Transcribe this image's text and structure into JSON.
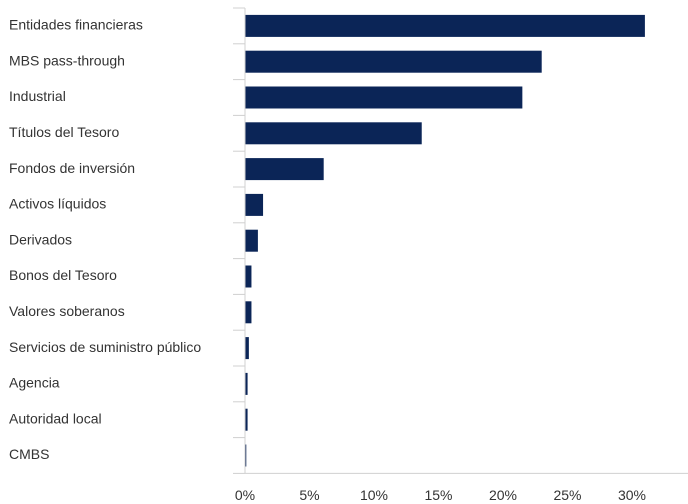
{
  "chart_data": {
    "type": "bar",
    "orientation": "horizontal",
    "categories": [
      "Entidades financieras",
      "MBS pass-through",
      "Industrial",
      "Títulos del Tesoro",
      "Fondos de inversión",
      "Activos líquidos",
      "Derivados",
      "Bonos del Tesoro",
      "Valores soberanos",
      "Servicios de suministro público",
      "Agencia",
      "Autoridad local",
      "CMBS"
    ],
    "values": [
      31.0,
      23.0,
      21.5,
      13.7,
      6.1,
      1.4,
      1.0,
      0.5,
      0.5,
      0.3,
      0.2,
      0.2,
      0.1
    ],
    "xlim": [
      0,
      35
    ],
    "x_ticks": [
      0,
      5,
      10,
      15,
      20,
      25,
      30
    ],
    "x_tick_labels": [
      "0%",
      "5%",
      "10%",
      "15%",
      "20%",
      "25%",
      "30%"
    ],
    "title": "",
    "xlabel": "",
    "ylabel": "",
    "grid": false,
    "legend": "none",
    "bar_color": "#0b2557",
    "axis_color": "#d0d0d0",
    "text_color": "#333333"
  }
}
